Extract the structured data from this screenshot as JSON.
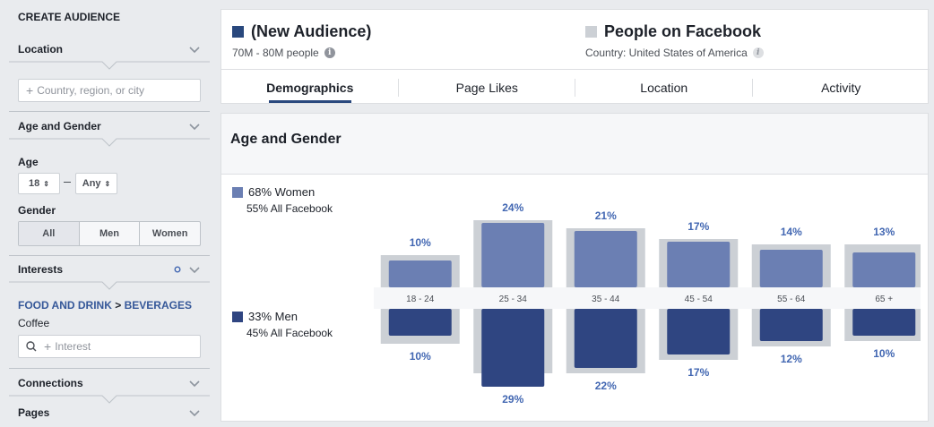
{
  "sidebar": {
    "title": "CREATE AUDIENCE",
    "location": {
      "label": "Location",
      "placeholder": "Country, region, or city"
    },
    "age_gender": {
      "label": "Age and Gender",
      "age_label": "Age",
      "age_min": "18",
      "age_max": "Any",
      "gender_label": "Gender",
      "genders": [
        "All",
        "Men",
        "Women"
      ],
      "selected_gender": "All"
    },
    "interests": {
      "label": "Interests",
      "breadcrumb_parent": "FOOD AND DRINK",
      "breadcrumb_sep": ">",
      "breadcrumb_child": "BEVERAGES",
      "selected": "Coffee",
      "placeholder": "Interest"
    },
    "connections": {
      "label": "Connections"
    },
    "pages": {
      "label": "Pages"
    }
  },
  "header": {
    "audience": {
      "title": "(New Audience)",
      "size": "70M - 80M people",
      "color": "#29487d"
    },
    "comparison": {
      "title": "People on Facebook",
      "country": "Country: United States of America",
      "color": "#ccd0d5"
    },
    "tabs": [
      "Demographics",
      "Page Likes",
      "Location",
      "Activity"
    ],
    "active_tab": "Demographics"
  },
  "panel": {
    "title": "Age and Gender",
    "women": {
      "pct": "68% Women",
      "all": "55% All Facebook"
    },
    "men": {
      "pct": "33% Men",
      "all": "45% All Facebook"
    }
  },
  "chart_data": {
    "type": "bar",
    "categories": [
      "18 - 24",
      "25 - 34",
      "35 - 44",
      "45 - 54",
      "55 - 64",
      "65 +"
    ],
    "series": [
      {
        "name": "Women",
        "values": [
          10,
          24,
          21,
          17,
          14,
          13
        ],
        "labels": [
          "10%",
          "24%",
          "21%",
          "17%",
          "14%",
          "13%"
        ],
        "color": "#6b7fb3",
        "baseline": [
          12,
          25,
          22,
          18,
          16,
          16
        ]
      },
      {
        "name": "Men",
        "values": [
          10,
          29,
          22,
          17,
          12,
          10
        ],
        "labels": [
          "10%",
          "29%",
          "22%",
          "17%",
          "12%",
          "10%"
        ],
        "color": "#2f4581",
        "baseline": [
          13,
          24,
          24,
          19,
          14,
          12
        ]
      }
    ],
    "baseline_color": "#ccd0d5"
  }
}
